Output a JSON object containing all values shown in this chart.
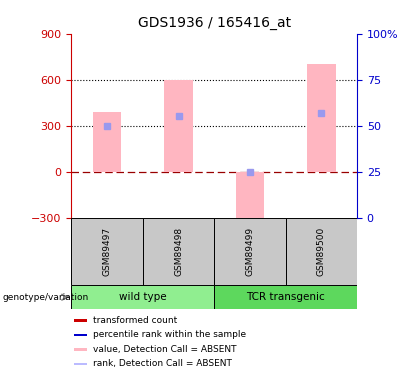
{
  "title": "GDS1936 / 165416_at",
  "samples": [
    "GSM89497",
    "GSM89498",
    "GSM89499",
    "GSM89500"
  ],
  "pink_bar_values": [
    390,
    600,
    -300,
    700
  ],
  "blue_rank_values": [
    50,
    55,
    25,
    57
  ],
  "ylim_left": [
    -300,
    900
  ],
  "ylim_right": [
    0,
    100
  ],
  "yticks_left": [
    -300,
    0,
    300,
    600,
    900
  ],
  "yticks_right": [
    0,
    25,
    50,
    75,
    100
  ],
  "hline_dotted_values": [
    300,
    600
  ],
  "hline_red_value": 0,
  "groups": [
    {
      "label": "wild type",
      "indices": [
        0,
        1
      ],
      "color": "#90EE90"
    },
    {
      "label": "TCR transgenic",
      "indices": [
        2,
        3
      ],
      "color": "#5DD85D"
    }
  ],
  "bar_width": 0.4,
  "pink_color": "#FFB6C1",
  "blue_color": "#9999EE",
  "left_axis_color": "#CC0000",
  "right_axis_color": "#0000CC",
  "sample_box_color": "#C8C8C8",
  "legend_colors": [
    "#CC0000",
    "#0000CC",
    "#FFB6C1",
    "#BBBBFF"
  ],
  "legend_labels": [
    "transformed count",
    "percentile rank within the sample",
    "value, Detection Call = ABSENT",
    "rank, Detection Call = ABSENT"
  ]
}
